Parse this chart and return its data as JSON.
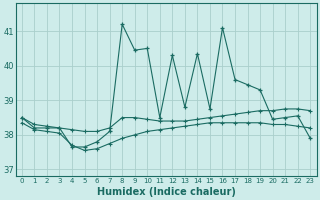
{
  "xlabel": "Humidex (Indice chaleur)",
  "background_color": "#ceecea",
  "plot_bg_color": "#ceecea",
  "grid_color": "#aacfcc",
  "line_color": "#1a6b62",
  "ylim": [
    36.8,
    41.8
  ],
  "xlim": [
    -0.5,
    23.5
  ],
  "yticks": [
    37,
    38,
    39,
    40,
    41
  ],
  "xticks": [
    0,
    1,
    2,
    3,
    4,
    5,
    6,
    7,
    8,
    9,
    10,
    11,
    12,
    13,
    14,
    15,
    16,
    17,
    18,
    19,
    20,
    21,
    22,
    23
  ],
  "x": [
    0,
    1,
    2,
    3,
    4,
    5,
    6,
    7,
    8,
    9,
    10,
    11,
    12,
    13,
    14,
    15,
    16,
    17,
    18,
    19,
    20,
    21,
    22,
    23
  ],
  "y_main": [
    38.5,
    38.2,
    38.2,
    38.2,
    37.65,
    37.65,
    37.8,
    38.1,
    41.2,
    40.45,
    40.5,
    38.5,
    40.3,
    38.8,
    40.35,
    38.75,
    41.1,
    39.6,
    39.45,
    39.3,
    38.45,
    38.5,
    38.55,
    37.9
  ],
  "y_upper": [
    38.5,
    38.3,
    38.25,
    38.2,
    38.15,
    38.1,
    38.1,
    38.2,
    38.5,
    38.5,
    38.45,
    38.4,
    38.4,
    38.4,
    38.45,
    38.5,
    38.55,
    38.6,
    38.65,
    38.7,
    38.7,
    38.75,
    38.75,
    38.7
  ],
  "y_lower": [
    38.35,
    38.15,
    38.1,
    38.05,
    37.7,
    37.55,
    37.6,
    37.75,
    37.9,
    38.0,
    38.1,
    38.15,
    38.2,
    38.25,
    38.3,
    38.35,
    38.35,
    38.35,
    38.35,
    38.35,
    38.3,
    38.3,
    38.25,
    38.2
  ]
}
